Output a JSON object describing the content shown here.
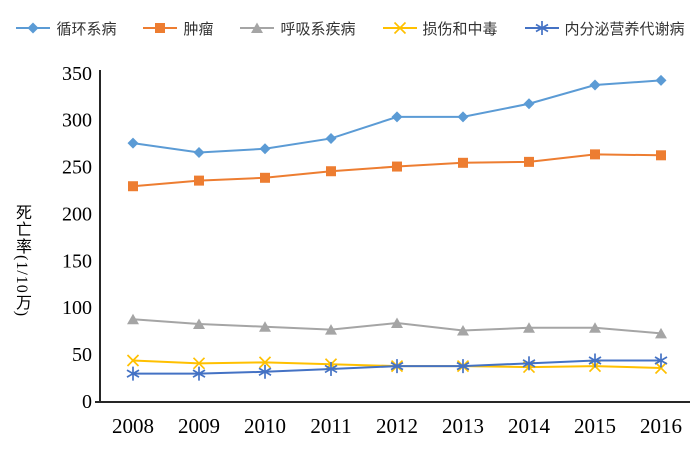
{
  "chart_data": {
    "type": "line",
    "title": "",
    "xlabel": "",
    "ylabel": "死亡率(1/10万)",
    "categories": [
      "2008",
      "2009",
      "2010",
      "2011",
      "2012",
      "2013",
      "2014",
      "2015",
      "2016"
    ],
    "ylim": [
      0,
      350
    ],
    "yticks": [
      0,
      50,
      100,
      150,
      200,
      250,
      300,
      350
    ],
    "grid": false,
    "legend_position": "top",
    "axis_color": "#262626",
    "tick_label_color": "#000000",
    "series": [
      {
        "name": "循环系病",
        "marker": "diamond",
        "color": "#5B9BD5",
        "values": [
          275,
          265,
          269,
          280,
          303,
          303,
          317,
          337,
          342
        ]
      },
      {
        "name": "肿瘤",
        "marker": "square",
        "color": "#ED7D31",
        "values": [
          229,
          235,
          238,
          245,
          250,
          254,
          255,
          263,
          262
        ]
      },
      {
        "name": "呼吸系疾病",
        "marker": "triangle",
        "color": "#A5A5A5",
        "values": [
          87,
          82,
          79,
          76,
          83,
          75,
          78,
          78,
          72
        ]
      },
      {
        "name": "损伤和中毒",
        "marker": "x",
        "color": "#FFC000",
        "values": [
          43,
          40,
          41,
          39,
          37,
          37,
          36,
          37,
          35
        ]
      },
      {
        "name": "内分泌营养代谢病",
        "marker": "asterisk",
        "color": "#4472C4",
        "values": [
          29,
          29,
          31,
          34,
          37,
          37,
          40,
          43,
          43
        ]
      }
    ]
  }
}
